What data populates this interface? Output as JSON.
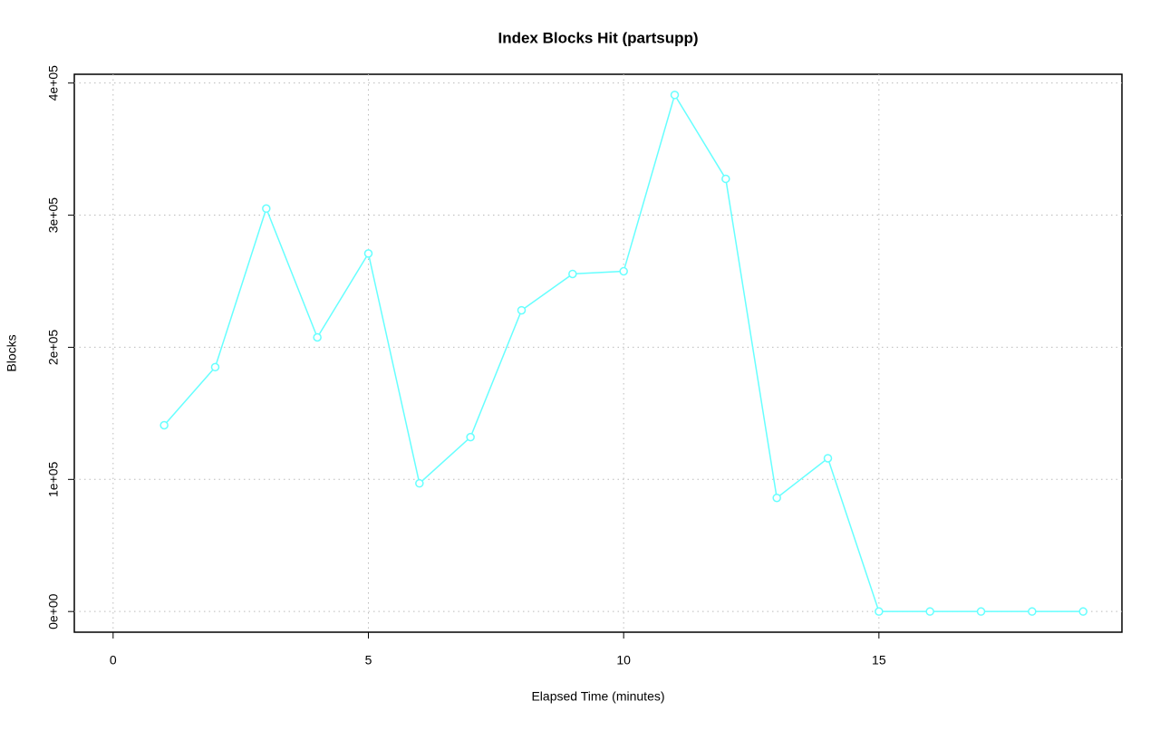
{
  "chart_data": {
    "type": "line",
    "title": "Index Blocks Hit (partsupp)",
    "x_label": "Elapsed Time (minutes)",
    "y_label": "Blocks",
    "x": [
      1,
      2,
      3,
      4,
      5,
      6,
      7,
      8,
      9,
      10,
      11,
      12,
      13,
      14,
      15,
      16,
      17,
      18,
      19
    ],
    "series": [
      {
        "color": "#66ffff",
        "values": [
          141000,
          185000,
          305000,
          207500,
          271000,
          97000,
          132000,
          228000,
          255500,
          257500,
          391000,
          327500,
          86000,
          116000,
          0,
          0,
          0,
          0,
          0
        ]
      }
    ],
    "xlim": [
      -0.76,
      19.76
    ],
    "xticks": [
      0,
      5,
      10,
      15
    ],
    "ylim": [
      -15640,
      406640
    ],
    "yticks": [
      {
        "value": 0,
        "label": "0e+00"
      },
      {
        "value": 100000,
        "label": "1e+05"
      },
      {
        "value": 200000,
        "label": "2e+05"
      },
      {
        "value": 300000,
        "label": "3e+05"
      },
      {
        "value": 400000,
        "label": "4e+05"
      }
    ],
    "grid": true
  }
}
